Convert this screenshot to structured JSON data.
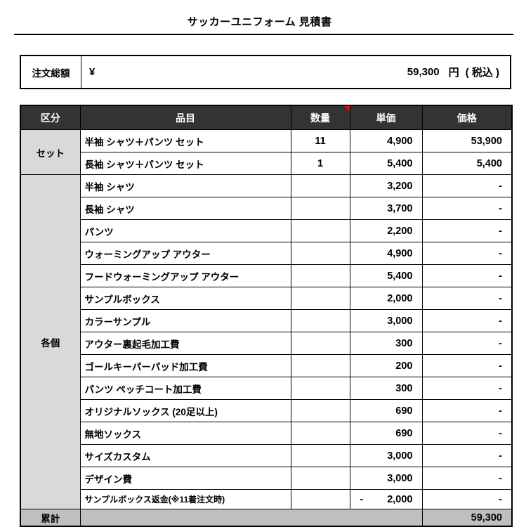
{
  "title": "サッカーユニフォーム 見積書",
  "summary": {
    "label": "注文総額",
    "currency": "¥",
    "amount": "59,300",
    "unit": "円",
    "tax_note": "( 税込 )"
  },
  "table": {
    "headers": [
      "区分",
      "品目",
      "数量",
      "単価",
      "価格"
    ],
    "comment_marker_column": "数量",
    "groups": [
      {
        "label": "セット",
        "items": [
          {
            "name": "半袖 シャツ＋パンツ セット",
            "qty": "11",
            "unit_price": "4,900",
            "price": "53,900"
          },
          {
            "name": "長袖 シャツ＋パンツ セット",
            "qty": "1",
            "unit_price": "5,400",
            "price": "5,400"
          }
        ]
      },
      {
        "label": "各個",
        "items": [
          {
            "name": "半袖 シャツ",
            "qty": "",
            "unit_price": "3,200",
            "price": "-"
          },
          {
            "name": "長袖 シャツ",
            "qty": "",
            "unit_price": "3,700",
            "price": "-"
          },
          {
            "name": "パンツ",
            "qty": "",
            "unit_price": "2,200",
            "price": "-"
          },
          {
            "name": "ウォーミングアップ  アウター",
            "qty": "",
            "unit_price": "4,900",
            "price": "-"
          },
          {
            "name": "フードウォーミングアップ アウター",
            "qty": "",
            "unit_price": "5,400",
            "price": "-"
          },
          {
            "name": "サンプルボックス",
            "qty": "",
            "unit_price": "2,000",
            "price": "-"
          },
          {
            "name": "カラーサンプル",
            "qty": "",
            "unit_price": "3,000",
            "price": "-"
          },
          {
            "name": "アウター裏起毛加工費",
            "qty": "",
            "unit_price": "300",
            "price": "-"
          },
          {
            "name": "ゴールキーパーパッド加工費",
            "qty": "",
            "unit_price": "200",
            "price": "-"
          },
          {
            "name": "パンツ ペッチコート加工費",
            "qty": "",
            "unit_price": "300",
            "price": "-"
          },
          {
            "name": "オリジナルソックス (20足以上)",
            "qty": "",
            "unit_price": "690",
            "price": "-"
          },
          {
            "name": "無地ソックス",
            "qty": "",
            "unit_price": "690",
            "price": "-"
          },
          {
            "name": "サイズカスタム",
            "qty": "",
            "unit_price": "3,000",
            "price": "-"
          },
          {
            "name": "デザイン費",
            "qty": "",
            "unit_price": "3,000",
            "price": "-"
          },
          {
            "name": "サンプルボックス返金(※11着注文時)",
            "qty": "",
            "unit_price": "2,000",
            "unit_minus": "-",
            "price": "-",
            "small": true
          }
        ]
      }
    ],
    "total": {
      "label": "累計",
      "price": "59,300"
    }
  },
  "colors": {
    "header_bg": "#333333",
    "header_text": "#ffffff",
    "group_bg": "#d9d9d9",
    "total_bg": "#bfbfbf",
    "comment_marker": "#ff0000",
    "border": "#000000"
  }
}
